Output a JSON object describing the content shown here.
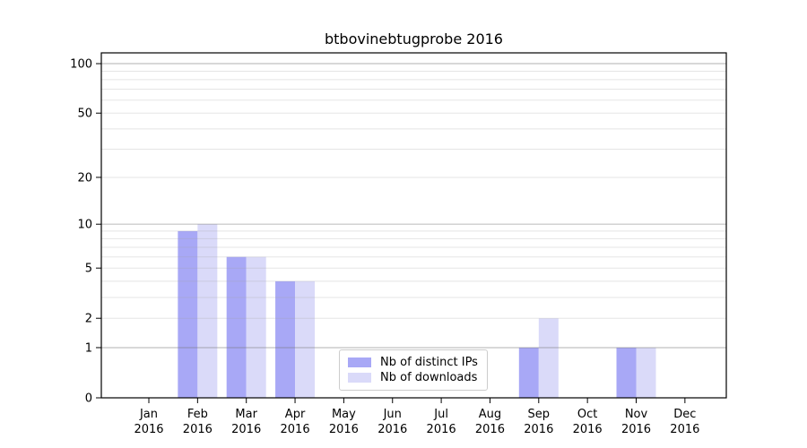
{
  "chart_data": {
    "type": "bar",
    "title": "btbovinebtugprobe 2016",
    "categories": [
      "Jan\n2016",
      "Feb\n2016",
      "Mar\n2016",
      "Apr\n2016",
      "May\n2016",
      "Jun\n2016",
      "Jul\n2016",
      "Aug\n2016",
      "Sep\n2016",
      "Oct\n2016",
      "Nov\n2016",
      "Dec\n2016"
    ],
    "series": [
      {
        "name": "Nb of distinct IPs",
        "color": "#a8a8f6",
        "values": [
          0,
          9,
          6,
          4,
          0,
          0,
          0,
          0,
          1,
          0,
          1,
          0
        ]
      },
      {
        "name": "Nb of downloads",
        "color": "#dadaf9",
        "values": [
          0,
          10,
          6,
          4,
          0,
          0,
          0,
          0,
          2,
          0,
          1,
          0
        ]
      }
    ],
    "y_scale": "log1p",
    "ylim": [
      0,
      116.2
    ],
    "y_ticks": [
      0,
      1,
      2,
      5,
      10,
      20,
      50,
      100
    ],
    "y_tick_labels": [
      "0",
      "1",
      "2",
      "5",
      "10",
      "20",
      "50",
      "100"
    ],
    "major_grid_values": [
      1,
      10,
      100
    ],
    "minor_grid_values": [
      2,
      3,
      4,
      5,
      6,
      7,
      8,
      9,
      20,
      30,
      40,
      50,
      60,
      70,
      80,
      90
    ],
    "grid": true,
    "legend_position": "lower center",
    "colors": {
      "axis": "#000000",
      "tick_text": "#000000",
      "grid_major": "rgba(120,120,120,0.45)",
      "grid_minor": "rgba(160,160,160,0.28)",
      "background": "#ffffff"
    }
  }
}
